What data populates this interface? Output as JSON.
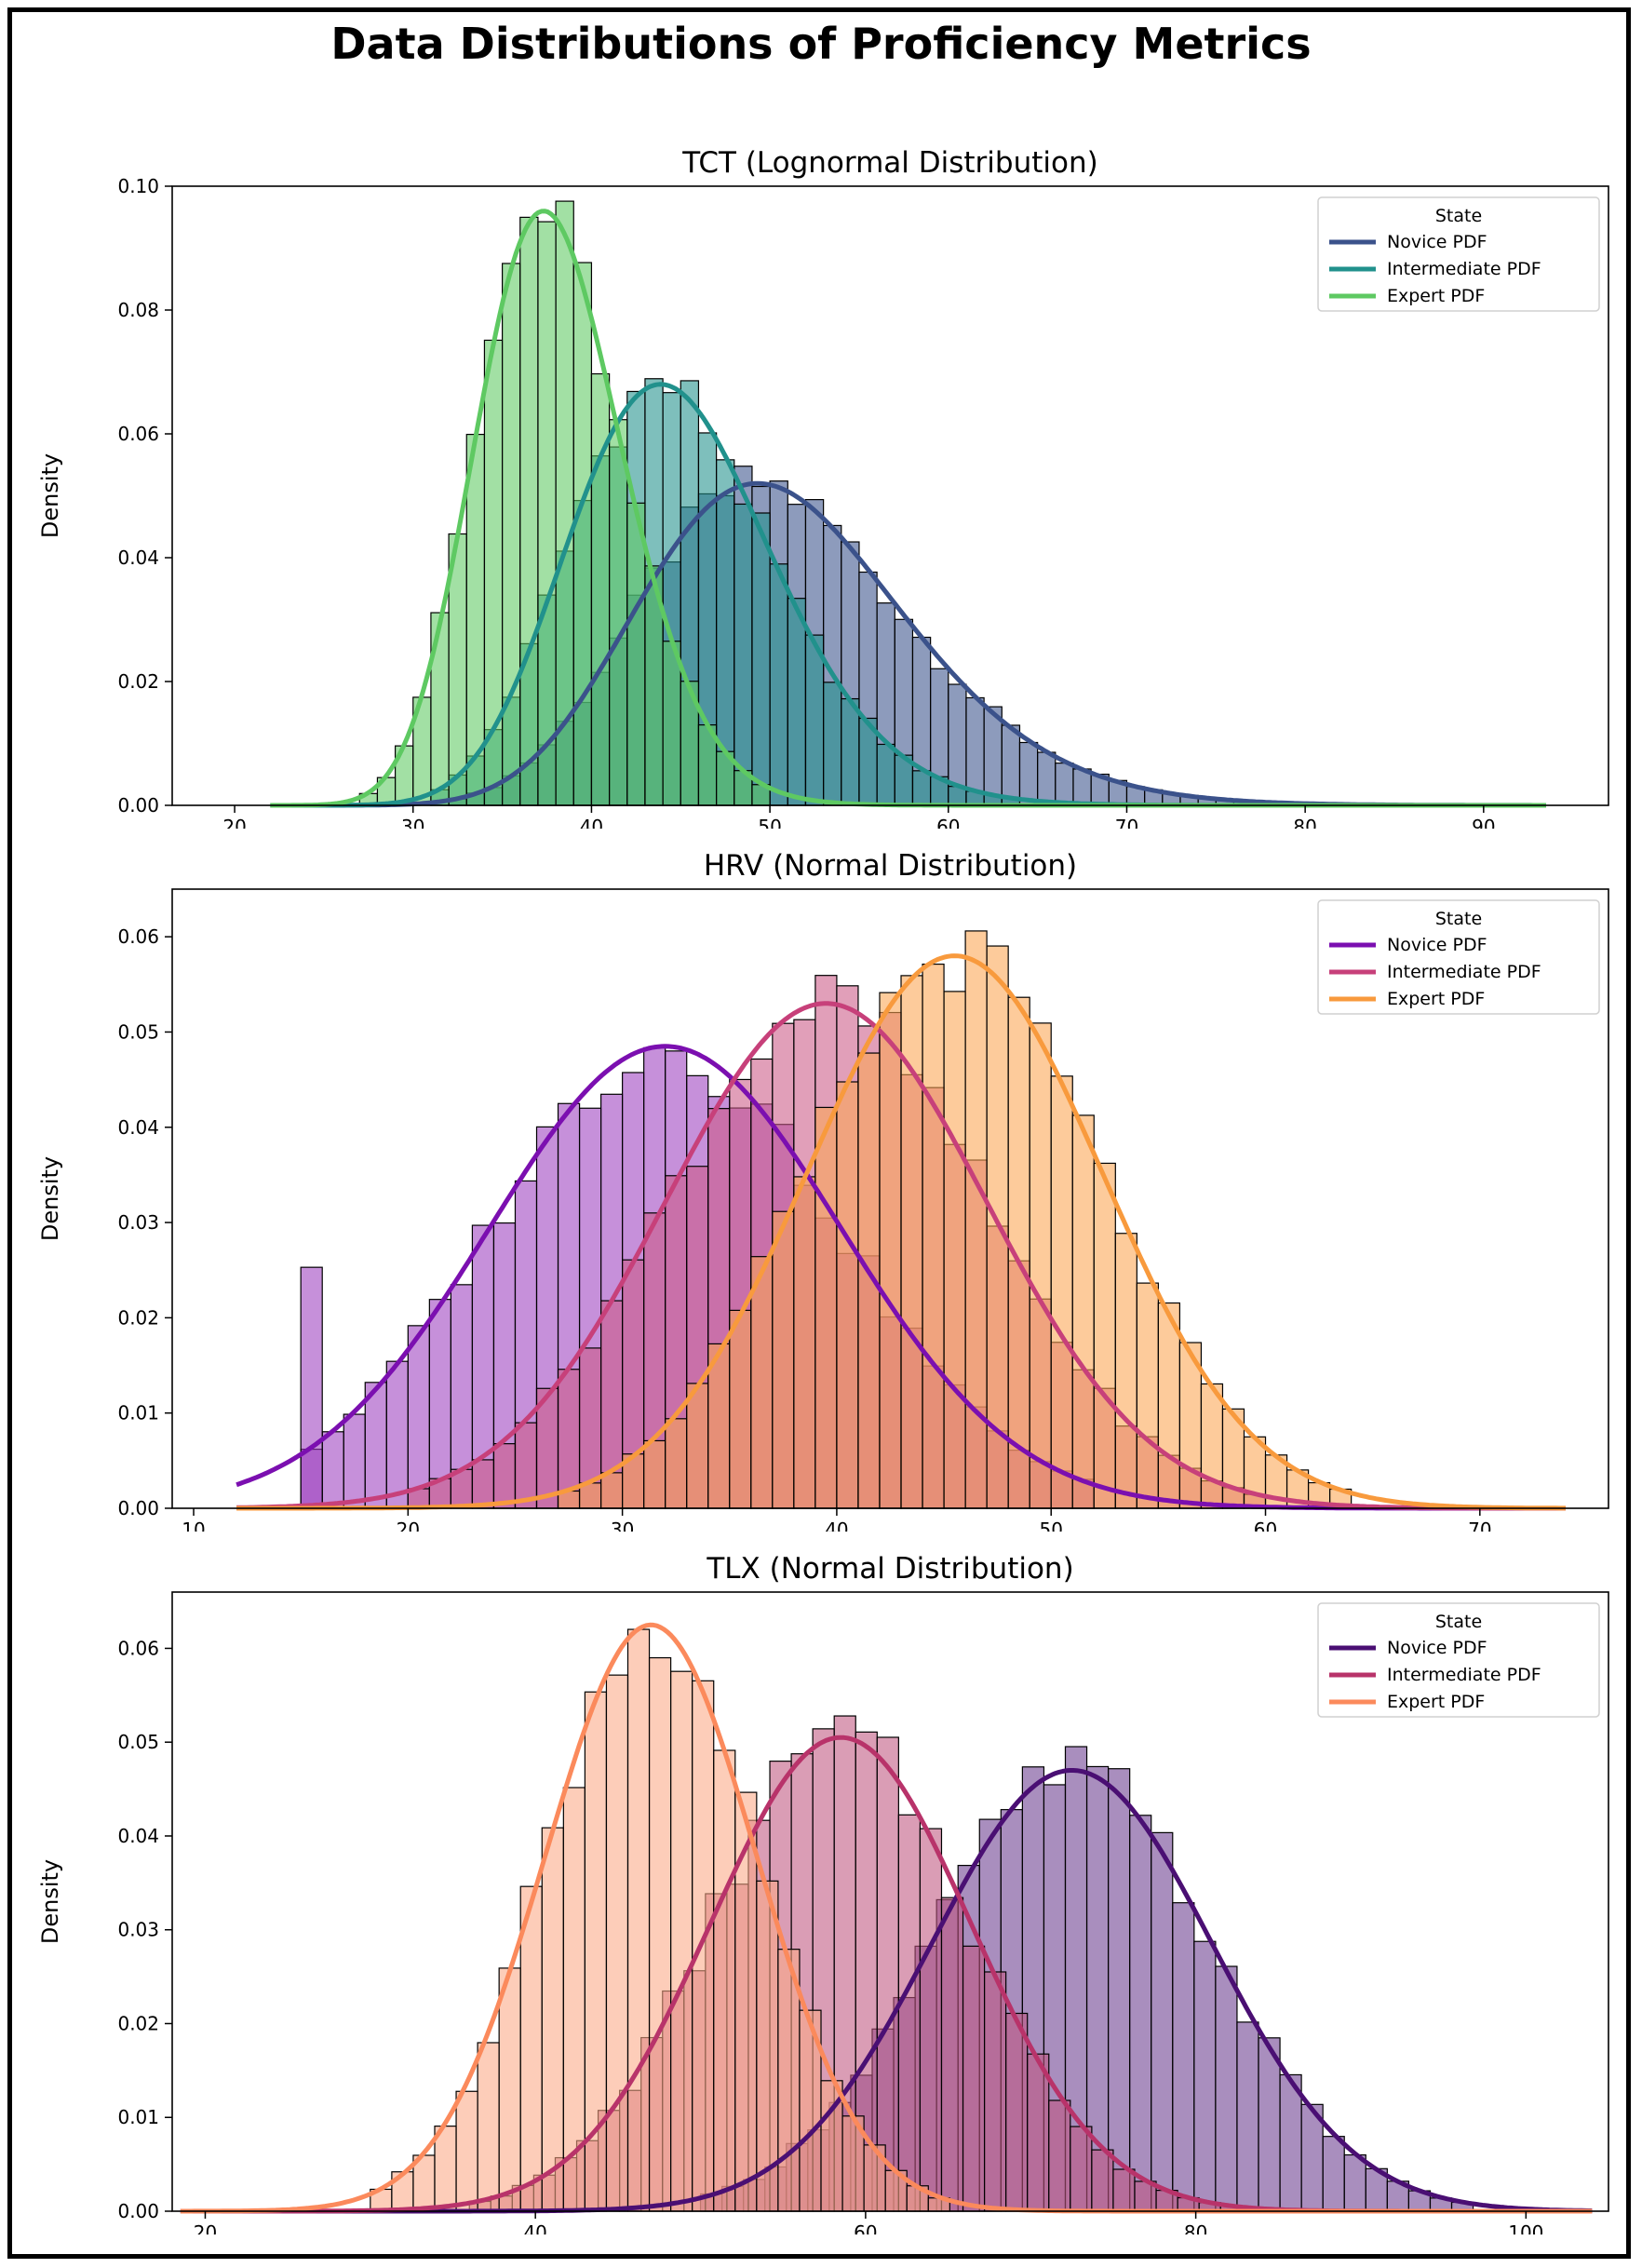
{
  "figure": {
    "title": "Data Distributions of Proficiency Metrics"
  },
  "chart_data": [
    {
      "type": "histogram",
      "title": "TCT (Lognormal Distribution)",
      "xlabel": "",
      "ylabel": "Density",
      "xlim": [
        16.5,
        97
      ],
      "ylim": [
        0,
        0.1
      ],
      "x_ticks": [
        "20",
        "30",
        "40",
        "50",
        "60",
        "70",
        "80",
        "90"
      ],
      "y_ticks": [
        "0.00",
        "0.02",
        "0.04",
        "0.06",
        "0.08",
        "0.10"
      ],
      "legend": {
        "title": "State",
        "position": "top-right"
      },
      "bin_width": 1,
      "curve_x_range": [
        22,
        93.5
      ],
      "series": [
        {
          "name": "Novice",
          "legend_label": "Novice PDF",
          "distribution": "lognormal",
          "mean": 51,
          "peak": 0.052,
          "sigma": 0.15,
          "hist_range": [
            32,
            78
          ],
          "line_color": "#3b528b",
          "bar_color": "#3b528b"
        },
        {
          "name": "Intermediate",
          "legend_label": "Intermediate PDF",
          "distribution": "lognormal",
          "mean": 45,
          "peak": 0.068,
          "sigma": 0.13,
          "hist_range": [
            31,
            64
          ],
          "line_color": "#21918c",
          "bar_color": "#21918c"
        },
        {
          "name": "Expert",
          "legend_label": "Expert PDF",
          "distribution": "lognormal",
          "mean": 38,
          "peak": 0.096,
          "sigma": 0.11,
          "hist_range": [
            27,
            50
          ],
          "line_color": "#5ec962",
          "bar_color": "#5ec962"
        }
      ]
    },
    {
      "type": "histogram",
      "title": "HRV (Normal Distribution)",
      "xlabel": "",
      "ylabel": "Density",
      "xlim": [
        9,
        76
      ],
      "ylim": [
        0,
        0.065
      ],
      "x_ticks": [
        "10",
        "20",
        "30",
        "40",
        "50",
        "60",
        "70"
      ],
      "y_ticks": [
        "0.00",
        "0.01",
        "0.02",
        "0.03",
        "0.04",
        "0.05",
        "0.06"
      ],
      "legend": {
        "title": "State",
        "position": "top-right"
      },
      "bin_width": 1,
      "curve_x_range": [
        12,
        74
      ],
      "series": [
        {
          "name": "Novice",
          "legend_label": "Novice PDF",
          "distribution": "normal",
          "mean": 32,
          "peak": 0.0485,
          "sigma": 8.2,
          "hist_range": [
            15,
            52
          ],
          "spike": {
            "x": 15.5,
            "value": 0.0253
          },
          "line_color": "#7b0fb0",
          "bar_color": "#9c3fbf"
        },
        {
          "name": "Intermediate",
          "legend_label": "Intermediate PDF",
          "distribution": "normal",
          "mean": 39.5,
          "peak": 0.053,
          "sigma": 7.5,
          "hist_range": [
            20,
            60
          ],
          "line_color": "#c7407a",
          "bar_color": "#cc5a86"
        },
        {
          "name": "Expert",
          "legend_label": "Expert PDF",
          "distribution": "normal",
          "mean": 45.5,
          "peak": 0.058,
          "sigma": 6.9,
          "hist_range": [
            27,
            64
          ],
          "line_color": "#f89a3d",
          "bar_color": "#fca652"
        }
      ]
    },
    {
      "type": "histogram",
      "title": "TLX (Normal Distribution)",
      "xlabel": "",
      "ylabel": "Density",
      "xlim": [
        18,
        105
      ],
      "ylim": [
        0,
        0.066
      ],
      "x_ticks": [
        "20",
        "40",
        "60",
        "80",
        "100"
      ],
      "y_ticks": [
        "0.00",
        "0.01",
        "0.02",
        "0.03",
        "0.04",
        "0.05",
        "0.06"
      ],
      "legend": {
        "title": "State",
        "position": "top-right"
      },
      "bin_width": 1.3,
      "curve_x_range": [
        18.5,
        104
      ],
      "series": [
        {
          "name": "Novice",
          "legend_label": "Novice PDF",
          "distribution": "normal",
          "mean": 72.5,
          "peak": 0.047,
          "sigma": 8.5,
          "hist_range": [
            50,
            96
          ],
          "line_color": "#4a0f73",
          "bar_color": "#6a3d8f"
        },
        {
          "name": "Intermediate",
          "legend_label": "Intermediate PDF",
          "distribution": "normal",
          "mean": 58.5,
          "peak": 0.0505,
          "sigma": 7.9,
          "hist_range": [
            36,
            82
          ],
          "line_color": "#b8336a",
          "bar_color": "#c0567f"
        },
        {
          "name": "Expert",
          "legend_label": "Expert PDF",
          "distribution": "normal",
          "mean": 47,
          "peak": 0.0625,
          "sigma": 6.4,
          "hist_range": [
            30,
            64
          ],
          "line_color": "#fb8a5c",
          "bar_color": "#fca987"
        }
      ]
    }
  ]
}
